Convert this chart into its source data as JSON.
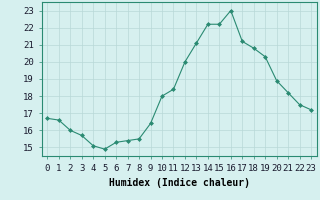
{
  "x": [
    0,
    1,
    2,
    3,
    4,
    5,
    6,
    7,
    8,
    9,
    10,
    11,
    12,
    13,
    14,
    15,
    16,
    17,
    18,
    19,
    20,
    21,
    22,
    23
  ],
  "y": [
    16.7,
    16.6,
    16.0,
    15.7,
    15.1,
    14.9,
    15.3,
    15.4,
    15.5,
    16.4,
    18.0,
    18.4,
    20.0,
    21.1,
    22.2,
    22.2,
    23.0,
    21.2,
    20.8,
    20.3,
    18.9,
    18.2,
    17.5,
    17.2
  ],
  "line_color": "#2a8a72",
  "marker_color": "#2a8a72",
  "bg_color": "#d6f0ef",
  "grid_color": "#b8d8d8",
  "xlabel": "Humidex (Indice chaleur)",
  "ylim": [
    14.5,
    23.5
  ],
  "xlim": [
    -0.5,
    23.5
  ],
  "yticks": [
    15,
    16,
    17,
    18,
    19,
    20,
    21,
    22,
    23
  ],
  "xtick_labels": [
    "0",
    "1",
    "2",
    "3",
    "4",
    "5",
    "6",
    "7",
    "8",
    "9",
    "10",
    "11",
    "12",
    "13",
    "14",
    "15",
    "16",
    "17",
    "18",
    "19",
    "20",
    "21",
    "22",
    "23"
  ],
  "label_fontsize": 7,
  "tick_fontsize": 6.5
}
